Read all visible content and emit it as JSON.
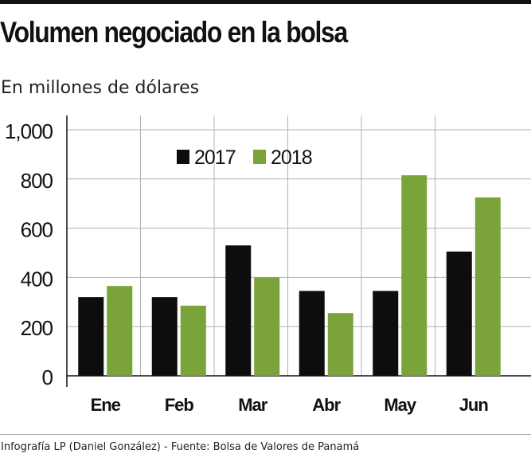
{
  "header": {
    "title": "Volumen negociado en la bolsa",
    "subtitle": "En millones de dólares"
  },
  "footer": {
    "source": "Infografía LP (Daniel González) - Fuente: Bolsa de Valores de Panamá"
  },
  "colors": {
    "series_2017": "#0d0d0d",
    "series_2018": "#7aa33a",
    "grid": "#b3b3b3",
    "axis": "#111111"
  },
  "chart_data": {
    "type": "bar",
    "title": "Volumen negociado en la bolsa",
    "subtitle": "En millones de dólares",
    "categories": [
      "Ene",
      "Feb",
      "Mar",
      "Abr",
      "May",
      "Jun"
    ],
    "series": [
      {
        "name": "2017",
        "values": [
          320,
          320,
          530,
          345,
          345,
          505
        ]
      },
      {
        "name": "2018",
        "values": [
          365,
          285,
          400,
          255,
          815,
          725
        ]
      }
    ],
    "ylim": [
      0,
      1000
    ],
    "yticks": [
      0,
      200,
      400,
      600,
      800,
      1000
    ],
    "ytick_labels": [
      "0",
      "200",
      "400",
      "600",
      "800",
      "1,000"
    ],
    "grid": true,
    "legend_position": "top-center"
  }
}
